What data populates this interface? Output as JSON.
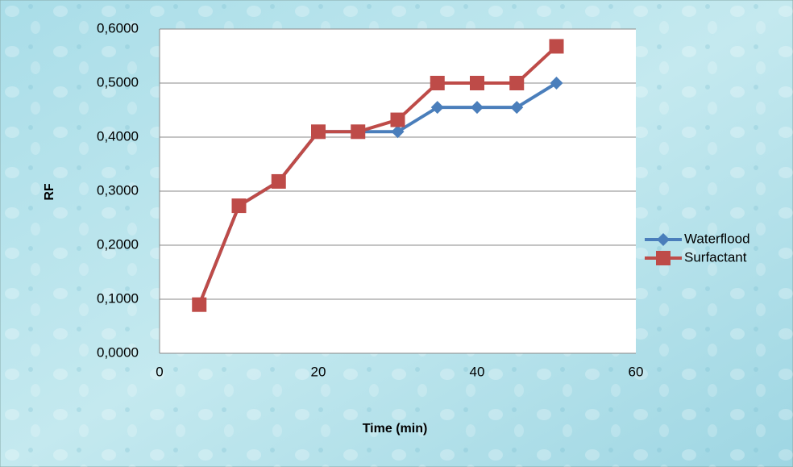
{
  "chart_data": {
    "type": "line",
    "x_label": "Time (min)",
    "y_label": "RF",
    "x": [
      5,
      10,
      15,
      20,
      25,
      30,
      35,
      40,
      45,
      50
    ],
    "series": [
      {
        "name": "Waterflood",
        "color": "#4a7ebb",
        "marker": "diamond",
        "values": [
          0.09,
          0.273,
          0.318,
          0.41,
          0.41,
          0.41,
          0.455,
          0.455,
          0.455,
          0.5
        ]
      },
      {
        "name": "Surfactant",
        "color": "#be4b48",
        "marker": "square",
        "values": [
          0.09,
          0.273,
          0.318,
          0.41,
          0.41,
          0.432,
          0.5,
          0.5,
          0.5,
          0.568
        ]
      }
    ],
    "xlim": [
      0,
      60
    ],
    "xticks": [
      0,
      20,
      40,
      60
    ],
    "ylim": [
      0,
      0.6
    ],
    "yticks": [
      {
        "value": 0,
        "label": "0,0000"
      },
      {
        "value": 0.1,
        "label": "0,1000"
      },
      {
        "value": 0.2,
        "label": "0,2000"
      },
      {
        "value": 0.3,
        "label": "0,3000"
      },
      {
        "value": 0.4,
        "label": "0,4000"
      },
      {
        "value": 0.5,
        "label": "0,5000"
      },
      {
        "value": 0.6,
        "label": "0,6000"
      }
    ],
    "grid": true,
    "legend": "right"
  }
}
